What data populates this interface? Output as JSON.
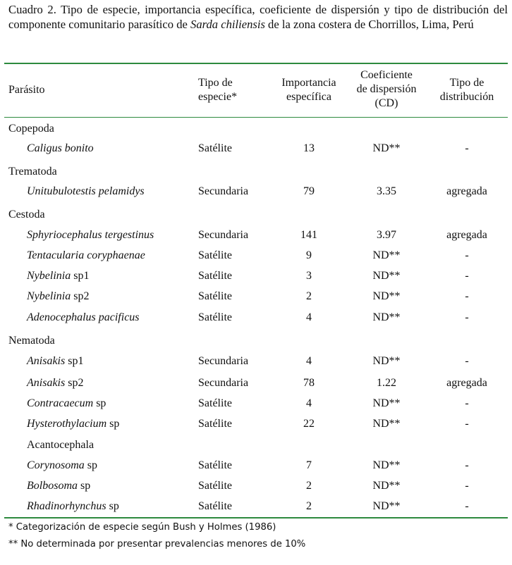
{
  "caption": {
    "prefix": "Cuadro 2.  Tipo de especie, importancia específica, coeficiente de dispersión y tipo de distribución del componente comunitario parasítico de ",
    "species": "Sarda chiliensis",
    "suffix": " de la zona costera de Chorrillos, Lima, Perú"
  },
  "headers": {
    "parasito": "Parásito",
    "tipo_especie_1": "Tipo de",
    "tipo_especie_2": "especie*",
    "importancia_1": "Importancia",
    "importancia_2": "específica",
    "cd_1": "Coeficiente",
    "cd_2": "de dispersión",
    "cd_3": "(CD)",
    "dist_1": "Tipo de",
    "dist_2": "distribución"
  },
  "rows": [
    {
      "category": "Copepoda"
    },
    {
      "genus": "Caligus bonito",
      "suffix": "",
      "tipo": "Satélite",
      "importancia": "13",
      "cd": "ND**",
      "dist": "-"
    },
    {
      "category": "Trematoda"
    },
    {
      "genus": "Unitubulotestis pelamidys",
      "suffix": "",
      "tipo": "Secundaria",
      "importancia": "79",
      "cd": "3.35",
      "dist": "agregada"
    },
    {
      "category": "Cestoda"
    },
    {
      "genus": "Sphyriocephalus tergestinus",
      "suffix": "",
      "tipo": "Secundaria",
      "importancia": "141",
      "cd": "3.97",
      "dist": "agregada"
    },
    {
      "genus": "Tentacularia coryphaenae",
      "suffix": "",
      "tipo": "Satélite",
      "importancia": "9",
      "cd": "ND**",
      "dist": "-"
    },
    {
      "genus": "Nybelinia",
      "suffix": " sp1",
      "tipo": "Satélite",
      "importancia": "3",
      "cd": "ND**",
      "dist": "-"
    },
    {
      "genus": "Nybelinia",
      "suffix": " sp2",
      "tipo": "Satélite",
      "importancia": "2",
      "cd": "ND**",
      "dist": "-"
    },
    {
      "genus": "Adenocephalus pacificus",
      "suffix": "",
      "tipo": "Satélite",
      "importancia": "4",
      "cd": "ND**",
      "dist": "-"
    },
    {
      "category": "Nematoda"
    },
    {
      "genus": "Anisakis",
      "suffix": " sp1",
      "tipo": "Secundaria",
      "importancia": "4",
      "cd": "ND**",
      "dist": "-"
    },
    {
      "genus": "Anisakis",
      "suffix": " sp2",
      "tipo": "Secundaria",
      "importancia": "78",
      "cd": "1.22",
      "dist": "agregada"
    },
    {
      "genus": "Contracaecum",
      "suffix": " sp",
      "tipo": "Satélite",
      "importancia": "4",
      "cd": "ND**",
      "dist": "-"
    },
    {
      "genus": "Hysterothylacium",
      "suffix": " sp",
      "tipo": "Satélite",
      "importancia": "22",
      "cd": "ND**",
      "dist": "-"
    },
    {
      "category": "Acantocephala",
      "indent": true
    },
    {
      "genus": "Corynosoma",
      "suffix": " sp",
      "tipo": "Satélite",
      "importancia": "7",
      "cd": "ND**",
      "dist": "-"
    },
    {
      "genus": "Bolbosoma",
      "suffix": " sp",
      "tipo": "Satélite",
      "importancia": "2",
      "cd": "ND**",
      "dist": "-"
    },
    {
      "genus": "Rhadinorhynchus",
      "suffix": " sp",
      "tipo": "Satélite",
      "importancia": "2",
      "cd": "ND**",
      "dist": "-"
    }
  ],
  "footnotes": {
    "note1": "* Categorización de especie según Bush y Holmes (1986)",
    "note2": "** No determinada por presentar prevalencias menores de 10%"
  }
}
